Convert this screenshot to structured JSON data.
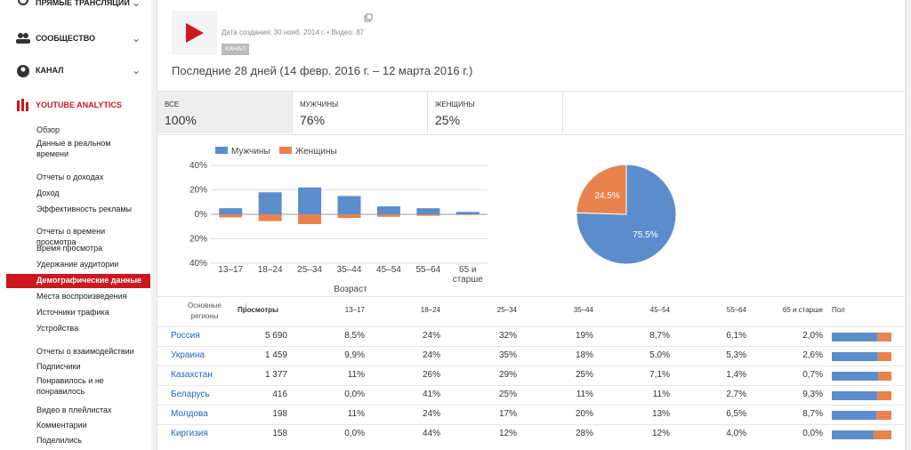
{
  "sidebar": {
    "sections": [
      "ПРЯМЫЕ ТРАНСЛЯЦИИ",
      "СООБЩЕСТВО",
      "КАНАЛ",
      "YOUTUBE ANALYTICS"
    ],
    "links": [
      "Обзор",
      "Данные в реальном времени",
      "Отчеты о доходах",
      "Доход",
      "Эффективность рекламы",
      "Отчеты о времени просмотра",
      "Время просмотра",
      "Удержание аудитории",
      "Демографические данные",
      "Места воспроизведения",
      "Источники трафика",
      "Устройства",
      "Отчеты о взаимодействии",
      "Подписчики",
      "Понравилось и не понравилось",
      "Видео в плейлистах",
      "Комментарии",
      "Поделились"
    ]
  },
  "header": {
    "meta": "Дата создания: 30 нояб. 2014 г. • Видео: 87",
    "badge": "КАНАЛ",
    "period": "Последние 28 дней (14 февр. 2016 г. – 12 марта 2016 г.)"
  },
  "tabs": [
    {
      "label": "ВСЕ",
      "value": "100%"
    },
    {
      "label": "МУЖЧИНЫ",
      "value": "76%"
    },
    {
      "label": "ЖЕНЩИНЫ",
      "value": "25%"
    }
  ],
  "chart_data": [
    {
      "type": "bar",
      "x_label": "Возраст",
      "categories": [
        "13–17",
        "18–24",
        "25–34",
        "35–44",
        "45–54",
        "55–64",
        "65 и старше"
      ],
      "series": [
        {
          "name": "Мужчины",
          "color": "#5b8dcc",
          "values": [
            5,
            18,
            22,
            15,
            6.5,
            5,
            2
          ]
        },
        {
          "name": "Женщины",
          "color": "#e8834e",
          "values": [
            -2.5,
            -5.5,
            -8,
            -3,
            -2,
            -1.2,
            -0.5
          ]
        }
      ],
      "ylim": [
        -40,
        40
      ],
      "yticks": [
        {
          "value": -40,
          "label": "40%"
        },
        {
          "value": -20,
          "label": "20%"
        },
        {
          "value": 0,
          "label": "0%"
        },
        {
          "value": 20,
          "label": "20%"
        },
        {
          "value": 40,
          "label": "40%"
        }
      ],
      "grid": true
    },
    {
      "type": "pie",
      "categories": [
        "Мужчины",
        "Женщины"
      ],
      "values": [
        75.5,
        24.5
      ],
      "value_labels": [
        "75.5%",
        "24.5%"
      ],
      "colors": [
        "#5b8dcc",
        "#e8834e"
      ]
    }
  ],
  "table": {
    "headers": [
      "Основные регионы",
      "Просмотры",
      "13–17",
      "18–24",
      "25–34",
      "35–44",
      "45–54",
      "55–64",
      "65 и старше",
      "Пол"
    ],
    "rows": [
      [
        "Россия",
        "5 690",
        "8,5%",
        "24%",
        "32%",
        "19%",
        "8,7%",
        "6,1%",
        "2,0%"
      ],
      [
        "Украина",
        "1 459",
        "9,9%",
        "24%",
        "35%",
        "18%",
        "5,0%",
        "5,3%",
        "2,6%"
      ],
      [
        "Казахстан",
        "1 377",
        "11%",
        "26%",
        "29%",
        "25%",
        "7,1%",
        "1,4%",
        "0,7%"
      ],
      [
        "Беларусь",
        "416",
        "0,0%",
        "41%",
        "25%",
        "11%",
        "11%",
        "2,7%",
        "9,3%"
      ],
      [
        "Молдова",
        "198",
        "11%",
        "24%",
        "17%",
        "20%",
        "13%",
        "6,5%",
        "8,7%"
      ],
      [
        "Киргизия",
        "158",
        "0,0%",
        "44%",
        "12%",
        "28%",
        "12%",
        "4,0%",
        "0,0%"
      ]
    ],
    "gender_male": [
      76,
      77,
      78,
      76,
      75,
      70
    ]
  }
}
